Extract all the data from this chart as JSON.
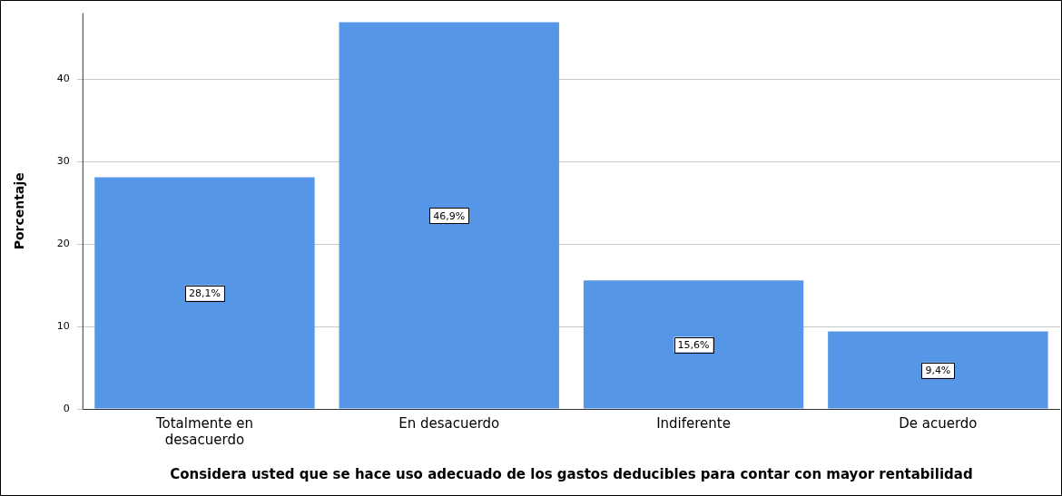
{
  "chart_data": {
    "type": "bar",
    "xlabel": "Considera usted que se hace uso adecuado de los gastos deducibles para contar con mayor rentabilidad",
    "ylabel": "Porcentaje",
    "categories": [
      "Totalmente en desacuerdo",
      "En desacuerdo",
      "Indiferente",
      "De acuerdo"
    ],
    "values": [
      28.1,
      46.9,
      15.6,
      9.4
    ],
    "value_labels": [
      "28,1%",
      "46,9%",
      "15,6%",
      "9,4%"
    ],
    "color": "#5596e6",
    "ylim": [
      0,
      48
    ],
    "yticks": [
      0,
      10,
      20,
      30,
      40
    ],
    "grid": "y",
    "legend": false
  }
}
